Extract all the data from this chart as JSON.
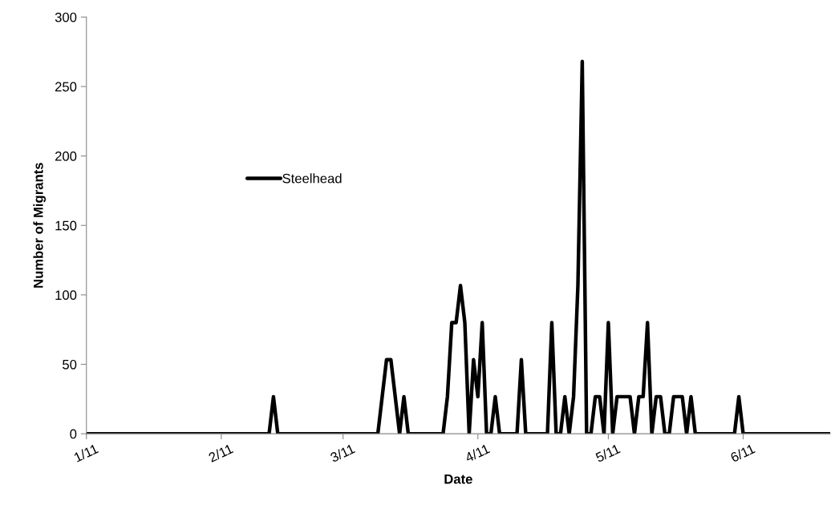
{
  "chart_data": {
    "type": "line",
    "xlabel": "Date",
    "ylabel": "Number of Migrants",
    "x": [
      "2011-01-01",
      "2011-02-12",
      "2011-02-13",
      "2011-02-14",
      "2011-03-09",
      "2011-03-11",
      "2011-03-12",
      "2011-03-14",
      "2011-03-15",
      "2011-03-16",
      "2011-03-24",
      "2011-03-25",
      "2011-03-26",
      "2011-03-27",
      "2011-03-28",
      "2011-03-29",
      "2011-03-30",
      "2011-03-31",
      "2011-04-01",
      "2011-04-02",
      "2011-04-03",
      "2011-04-04",
      "2011-04-05",
      "2011-04-06",
      "2011-04-10",
      "2011-04-11",
      "2011-04-12",
      "2011-04-17",
      "2011-04-18",
      "2011-04-19",
      "2011-04-20",
      "2011-04-21",
      "2011-04-22",
      "2011-04-23",
      "2011-04-24",
      "2011-04-25",
      "2011-04-26",
      "2011-04-27",
      "2011-04-28",
      "2011-04-29",
      "2011-04-30",
      "2011-05-01",
      "2011-05-02",
      "2011-05-03",
      "2011-05-06",
      "2011-05-07",
      "2011-05-08",
      "2011-05-09",
      "2011-05-10",
      "2011-05-11",
      "2011-05-12",
      "2011-05-13",
      "2011-05-14",
      "2011-05-15",
      "2011-05-16",
      "2011-05-18",
      "2011-05-19",
      "2011-05-20",
      "2011-05-21",
      "2011-05-30",
      "2011-05-31",
      "2011-06-01",
      "2011-06-21"
    ],
    "series": [
      {
        "name": "Steelhead",
        "color": "#000000",
        "values": [
          0,
          0,
          26.7,
          0,
          0,
          53.3,
          53.3,
          0,
          26.7,
          0,
          0,
          26.7,
          80,
          80,
          106.7,
          80,
          0,
          53.3,
          26.7,
          80,
          0,
          0,
          26.7,
          0,
          0,
          53.3,
          0,
          0,
          80,
          0,
          0,
          26.7,
          0,
          26.7,
          106.7,
          268,
          0,
          0,
          26.7,
          26.7,
          0,
          80,
          0,
          26.7,
          26.7,
          0,
          26.7,
          26.7,
          80,
          0,
          26.7,
          26.7,
          0,
          0,
          26.7,
          26.7,
          0,
          26.7,
          0,
          0,
          26.7,
          0,
          0
        ]
      }
    ],
    "xlim": [
      "2011-01-01",
      "2011-06-21"
    ],
    "xticks": [
      {
        "value": "2011-01-01",
        "label": "1/11"
      },
      {
        "value": "2011-02-01",
        "label": "2/11"
      },
      {
        "value": "2011-03-01",
        "label": "3/11"
      },
      {
        "value": "2011-04-01",
        "label": "4/11"
      },
      {
        "value": "2011-05-01",
        "label": "5/11"
      },
      {
        "value": "2011-06-01",
        "label": "6/11"
      }
    ],
    "ylim": [
      0,
      300
    ],
    "yticks": [
      0,
      50,
      100,
      150,
      200,
      250,
      300
    ],
    "grid": false,
    "legend": "center left",
    "marker": "none",
    "line_style": "solid"
  }
}
